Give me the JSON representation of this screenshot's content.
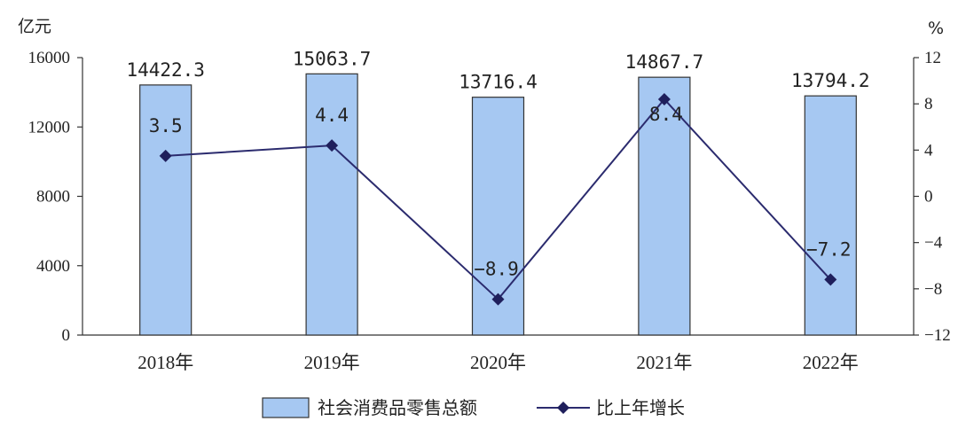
{
  "chart_data": {
    "type": "bar",
    "categories": [
      "2018年",
      "2019年",
      "2020年",
      "2021年",
      "2022年"
    ],
    "series": [
      {
        "name": "社会消费品零售总额",
        "type": "bar",
        "axis": "left",
        "values": [
          14422.3,
          15063.7,
          13716.4,
          14867.7,
          13794.2
        ],
        "labels": [
          "14422.3",
          "15063.7",
          "13716.4",
          "14867.7",
          "13794.2"
        ]
      },
      {
        "name": "比上年增长",
        "type": "line",
        "axis": "right",
        "values": [
          3.5,
          4.4,
          -8.9,
          8.4,
          -7.2
        ],
        "labels": [
          "3.5",
          "4.4",
          "−8.9",
          "8.4",
          "−7.2"
        ]
      }
    ],
    "y_left": {
      "unit": "亿元",
      "ylim": [
        0,
        16000
      ],
      "ticks": [
        "0",
        "4000",
        "8000",
        "12000",
        "16000"
      ]
    },
    "y_right": {
      "unit": "%",
      "ylim": [
        -12,
        12
      ],
      "ticks": [
        "−12",
        "−8",
        "−4",
        "0",
        "4",
        "8",
        "12"
      ]
    },
    "colors": {
      "bar_fill": "#a6c8f2",
      "bar_stroke": "#333333",
      "line": "#2b2b6e",
      "marker": "#1f1f5c"
    },
    "legend": {
      "position": "bottom"
    },
    "grid": false
  }
}
